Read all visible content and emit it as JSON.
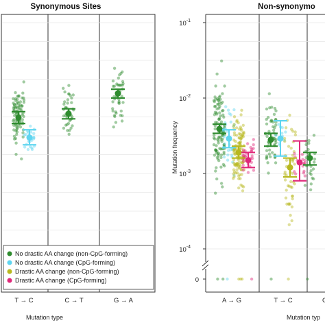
{
  "chart_data": [
    {
      "type": "scatter",
      "title": "Synonymous Sites",
      "xlabel": "Mutation type",
      "ylabel": "",
      "y_scale": "log",
      "categories": [
        "T → C",
        "C → T",
        "G → A"
      ],
      "legend": {
        "placement": "bottom",
        "entries": [
          {
            "label": "No drastic AA change (non-CpG-forming)",
            "color": "#2e8b2e"
          },
          {
            "label": "No drastic AA change (CpG-forming)",
            "color": "#5fd5f0"
          },
          {
            "label": "Drastic AA change (non-CpG-forming)",
            "color": "#b8b81e"
          },
          {
            "label": "Drastic AA change (CpG-forming)",
            "color": "#e0287a"
          }
        ]
      },
      "series": [
        {
          "category": "T → C",
          "group": 0,
          "color": "#2e8b2e",
          "mean": 0.0055,
          "ci": [
            0.0046,
            0.0066
          ],
          "points_range": [
            0.0005,
            0.0195
          ],
          "n": 90
        },
        {
          "category": "T → C",
          "group": 1,
          "color": "#5fd5f0",
          "mean": 0.003,
          "ci": [
            0.0024,
            0.0038
          ],
          "points_range": [
            0.0009,
            0.006
          ],
          "n": 25
        },
        {
          "category": "C → T",
          "group": 0,
          "color": "#2e8b2e",
          "mean": 0.0062,
          "ci": [
            0.0053,
            0.0072
          ],
          "points_range": [
            0.0012,
            0.02
          ],
          "n": 40
        },
        {
          "category": "G → A",
          "group": 0,
          "color": "#2e8b2e",
          "mean": 0.0115,
          "ci": [
            0.01,
            0.0131
          ],
          "points_range": [
            0.0009,
            0.03
          ],
          "n": 45
        }
      ]
    },
    {
      "type": "scatter",
      "title": "Non-synonymo",
      "xlabel": "Mutation typ",
      "ylabel": "Mutation frequency",
      "y_scale": "log",
      "y_ticks": [
        {
          "base": "10",
          "exp": "-1",
          "value": 0.1
        },
        {
          "base": "10",
          "exp": "-2",
          "value": 0.01
        },
        {
          "base": "10",
          "exp": "-3",
          "value": 0.001
        },
        {
          "base": "10",
          "exp": "-4",
          "value": 0.0001
        },
        {
          "base": "0",
          "exp": "",
          "value": 0
        }
      ],
      "categories": [
        "A → G",
        "T → C",
        "G"
      ],
      "series": [
        {
          "category": "A → G",
          "group": 0,
          "color": "#2e8b2e",
          "mean": 0.0039,
          "ci": [
            0.0034,
            0.0045
          ],
          "points_range": [
            0.0001,
            0.04
          ],
          "n": 110
        },
        {
          "category": "A → G",
          "group": 1,
          "color": "#5fd5f0",
          "mean": 0.0029,
          "ci": [
            0.0022,
            0.0038
          ],
          "points_range": [
            0.0002,
            0.009
          ],
          "n": 30
        },
        {
          "category": "A → G",
          "group": 2,
          "color": "#b8b81e",
          "mean": 0.0019,
          "ci": [
            0.0016,
            0.0023
          ],
          "points_range": [
            0.0002,
            0.012
          ],
          "n": 120
        },
        {
          "category": "A → G",
          "group": 3,
          "color": "#e0287a",
          "mean": 0.0015,
          "ci": [
            0.0012,
            0.0019
          ],
          "points_range": [
            0.0004,
            0.004
          ],
          "n": 30
        },
        {
          "category": "T → C",
          "group": 0,
          "color": "#2e8b2e",
          "mean": 0.0028,
          "ci": [
            0.0023,
            0.0034
          ],
          "points_range": [
            0.0001,
            0.012
          ],
          "n": 60
        },
        {
          "category": "T → C",
          "group": 1,
          "color": "#5fd5f0",
          "mean": 0.0029,
          "ci": [
            0.0017,
            0.005
          ],
          "points_range": [
            0.0006,
            0.006
          ],
          "n": 10
        },
        {
          "category": "T → C",
          "group": 2,
          "color": "#b8b81e",
          "mean": 0.0012,
          "ci": [
            0.0009,
            0.0016
          ],
          "points_range": [
            0.0001,
            0.09
          ],
          "n": 50
        },
        {
          "category": "T → C",
          "group": 3,
          "color": "#e0287a",
          "mean": 0.0014,
          "ci": [
            0.0008,
            0.0027
          ],
          "points_range": [
            0.0005,
            0.003
          ],
          "n": 15
        },
        {
          "category": "G",
          "group": 0,
          "color": "#2e8b2e",
          "mean": 0.0016,
          "ci": [
            0.0013,
            0.0019
          ],
          "points_range": [
            0.0001,
            0.007
          ],
          "n": 25
        }
      ]
    }
  ]
}
